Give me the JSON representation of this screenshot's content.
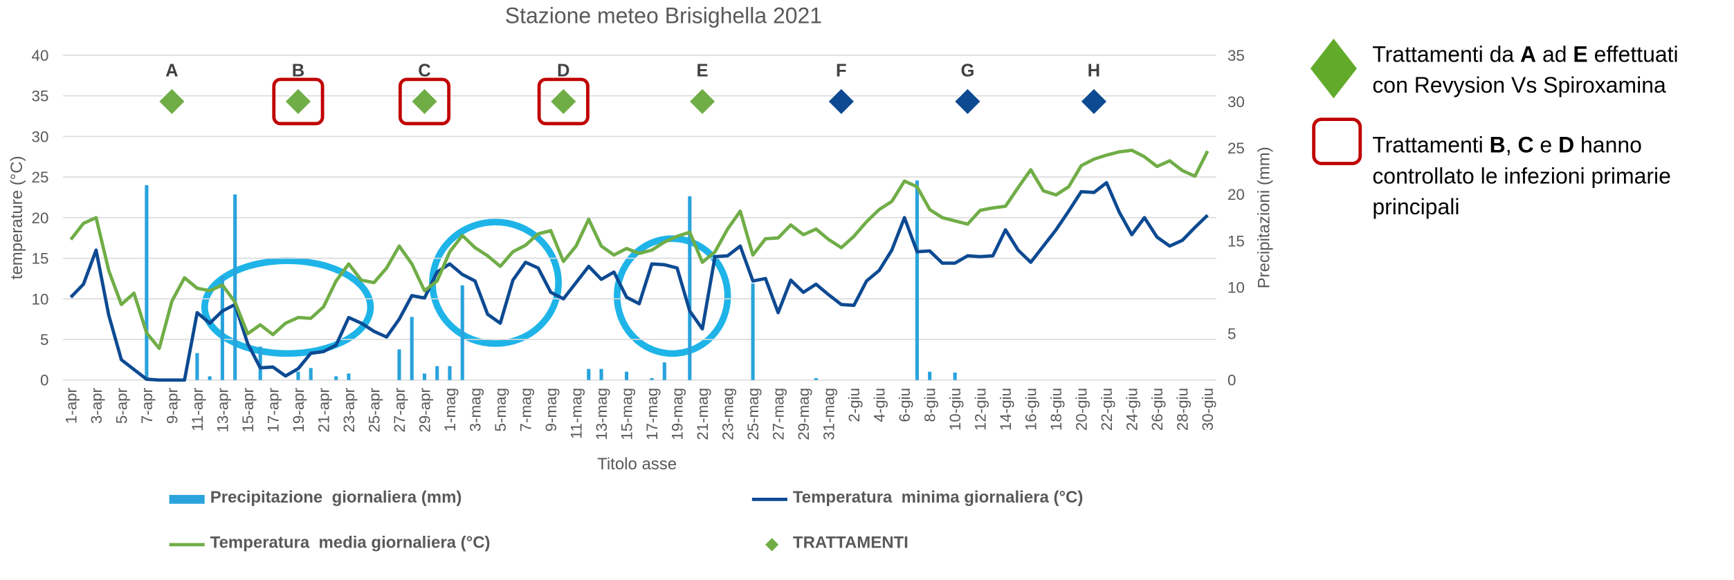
{
  "chart_data": {
    "type": "bar_line",
    "title": "Stazione meteo Brisighella 2021",
    "xlabel": "Titolo asse",
    "ylabel": "temperature (°C)",
    "y2label": "Precipitazioni (mm)",
    "categories": [
      "1-apr",
      null,
      "3-apr",
      null,
      "5-apr",
      null,
      "7-apr",
      null,
      "9-apr",
      null,
      "11-apr",
      null,
      "13-apr",
      null,
      "15-apr",
      null,
      "17-apr",
      null,
      "19-apr",
      null,
      "21-apr",
      null,
      "23-apr",
      null,
      "25-apr",
      null,
      "27-apr",
      null,
      "29-apr",
      null,
      "1-mag",
      null,
      "3-mag",
      null,
      "5-mag",
      null,
      "7-mag",
      null,
      "9-mag",
      null,
      "11-mag",
      null,
      "13-mag",
      null,
      "15-mag",
      null,
      "17-mag",
      null,
      "19-mag",
      null,
      "21-mag",
      null,
      "23-mag",
      null,
      "25-mag",
      null,
      "27-mag",
      null,
      "29-mag",
      null,
      "31-mag",
      null,
      "2-giu",
      null,
      "4-giu",
      null,
      "6-giu",
      null,
      "8-giu",
      null,
      "10-giu",
      null,
      "12-giu",
      null,
      "14-giu",
      null,
      "16-giu",
      null,
      "18-giu",
      null,
      "20-giu",
      null,
      "22-giu",
      null,
      "24-giu",
      null,
      "26-giu",
      null,
      "28-giu",
      null,
      "30-giu"
    ],
    "ylim": [
      0,
      40
    ],
    "yticks": [
      0,
      5,
      10,
      15,
      20,
      25,
      30,
      35,
      40
    ],
    "y2lim": [
      0,
      35
    ],
    "y2ticks": [
      0,
      5,
      10,
      15,
      20,
      25,
      30,
      35
    ],
    "grid": true,
    "series": [
      {
        "name": "Precipitazione  giornaliera (mm)",
        "type": "bar",
        "axis": "y2",
        "color": "#29a3dc",
        "values": [
          0,
          0,
          0,
          0,
          0,
          0,
          21,
          0,
          0,
          0,
          2.9,
          0.4,
          11.2,
          20,
          0,
          3.6,
          0,
          0,
          0.9,
          1.3,
          0,
          0.4,
          0.7,
          0,
          0,
          0,
          3.3,
          6.8,
          0.7,
          1.5,
          1.5,
          10.2,
          0,
          0,
          0,
          0,
          0,
          0,
          0,
          0,
          0,
          1.2,
          1.2,
          0,
          0.9,
          0,
          0.2,
          1.9,
          0,
          19.8,
          0,
          0,
          0,
          0,
          10.4,
          0,
          0,
          0,
          0,
          0.2,
          0,
          0,
          0,
          0,
          0,
          0,
          0,
          21.5,
          0.9,
          0,
          0.8,
          0,
          0,
          0,
          0,
          0,
          0,
          0,
          0,
          0,
          0,
          0,
          0,
          0,
          0,
          0,
          0,
          0,
          0,
          0,
          0
        ]
      },
      {
        "name": "Temperatura  minima giornaliera (°C)",
        "type": "line",
        "color": "#0d4a92",
        "values": [
          10.2,
          11.8,
          16,
          8,
          2.5,
          1.3,
          0.1,
          0,
          0,
          0,
          8.3,
          7,
          8.5,
          9.3,
          4.5,
          1.5,
          1.6,
          0.5,
          1.4,
          3.3,
          3.5,
          4.3,
          7.7,
          7,
          6,
          5.3,
          7.5,
          10.4,
          10.1,
          13.3,
          14.3,
          13,
          12.2,
          8.1,
          7,
          12.3,
          14.5,
          13.8,
          10.8,
          10,
          12,
          14,
          12.4,
          13.3,
          10.2,
          9.4,
          14.3,
          14.2,
          13.8,
          8.5,
          6.3,
          15.2,
          15.3,
          16.5,
          12.2,
          12.5,
          8.3,
          12.3,
          10.8,
          11.8,
          10.5,
          9.3,
          9.2,
          12.2,
          13.5,
          16,
          20,
          15.8,
          15.9,
          14.4,
          14.4,
          15.3,
          15.2,
          15.3,
          18.5,
          16,
          14.5,
          16.5,
          18.5,
          20.8,
          23.2,
          23.1,
          24.3,
          20.7,
          17.9,
          20,
          17.6,
          16.5,
          17.2,
          18.8,
          20.3
        ]
      },
      {
        "name": "Temperatura  media giornaliera (°C)",
        "type": "line",
        "color": "#70ad47",
        "values": [
          17.3,
          19.3,
          20,
          13.5,
          9.3,
          10.7,
          5.8,
          3.9,
          9.7,
          12.6,
          11.3,
          11,
          11.7,
          9.6,
          5.7,
          6.8,
          5.6,
          7,
          7.7,
          7.6,
          9,
          12.2,
          14.3,
          12.3,
          12,
          13.8,
          16.5,
          14.3,
          11,
          12.2,
          15.8,
          17.8,
          16.3,
          15.3,
          14,
          15.8,
          16.6,
          18,
          18.4,
          14.6,
          16.5,
          19.8,
          16.5,
          15.4,
          16.2,
          15.6,
          16,
          17,
          17.7,
          18.2,
          14.5,
          15.8,
          18.6,
          20.8,
          15.4,
          17.4,
          17.5,
          19.1,
          17.9,
          18.6,
          17.3,
          16.3,
          17.7,
          19.5,
          21,
          22,
          24.5,
          23.8,
          21,
          20,
          19.6,
          19.2,
          20.9,
          21.2,
          21.4,
          23.7,
          25.9,
          23.3,
          22.8,
          23.8,
          26.4,
          27.2,
          27.7,
          28.1,
          28.3,
          27.5,
          26.3,
          27,
          25.8,
          25.1,
          28.2
        ]
      }
    ],
    "treatments": {
      "name": "TRATTAMENTI",
      "color": "#70ad47",
      "box_color": "#c00000",
      "points": [
        {
          "at": 8,
          "label": "A",
          "value": 34.3,
          "color": "#70ad47"
        },
        {
          "at": 18,
          "label": "B",
          "value": 34.3,
          "color": "#70ad47",
          "boxed": true
        },
        {
          "at": 28,
          "label": "C",
          "value": 34.3,
          "color": "#70ad47",
          "boxed": true
        },
        {
          "at": 39,
          "label": "D",
          "value": 34.3,
          "color": "#70ad47",
          "boxed": true
        },
        {
          "at": 50,
          "label": "E",
          "value": 34.3,
          "color": "#70ad47"
        },
        {
          "at": 61,
          "label": "F",
          "value": 34.3,
          "color": "#0d4a92"
        },
        {
          "at": 71,
          "label": "G",
          "value": 34.3,
          "color": "#0d4a92"
        },
        {
          "at": 81,
          "label": "H",
          "value": 34.3,
          "color": "#0d4a92"
        }
      ]
    },
    "notes": [
      {
        "shape": "diamond",
        "color": "#62ab2a",
        "lines": [
          [
            {
              "text": "Trattamenti da "
            },
            {
              "text": "A",
              "bold": true
            },
            {
              "text": " ad "
            },
            {
              "text": "E",
              "bold": true
            },
            {
              "text": " effettuati"
            }
          ],
          [
            {
              "text": "con Revysion Vs Spiroxamina"
            }
          ]
        ]
      },
      {
        "shape": "box",
        "color": "#c00000",
        "lines": [
          [
            {
              "text": "Trattamenti "
            },
            {
              "text": "B",
              "bold": true
            },
            {
              "text": ", "
            },
            {
              "text": "C",
              "bold": true
            },
            {
              "text": " e "
            },
            {
              "text": "D",
              "bold": true
            },
            {
              "text": " hanno"
            }
          ],
          [
            {
              "text": "controllato le infezioni primarie"
            }
          ],
          [
            {
              "text": "principali"
            }
          ]
        ]
      }
    ]
  }
}
